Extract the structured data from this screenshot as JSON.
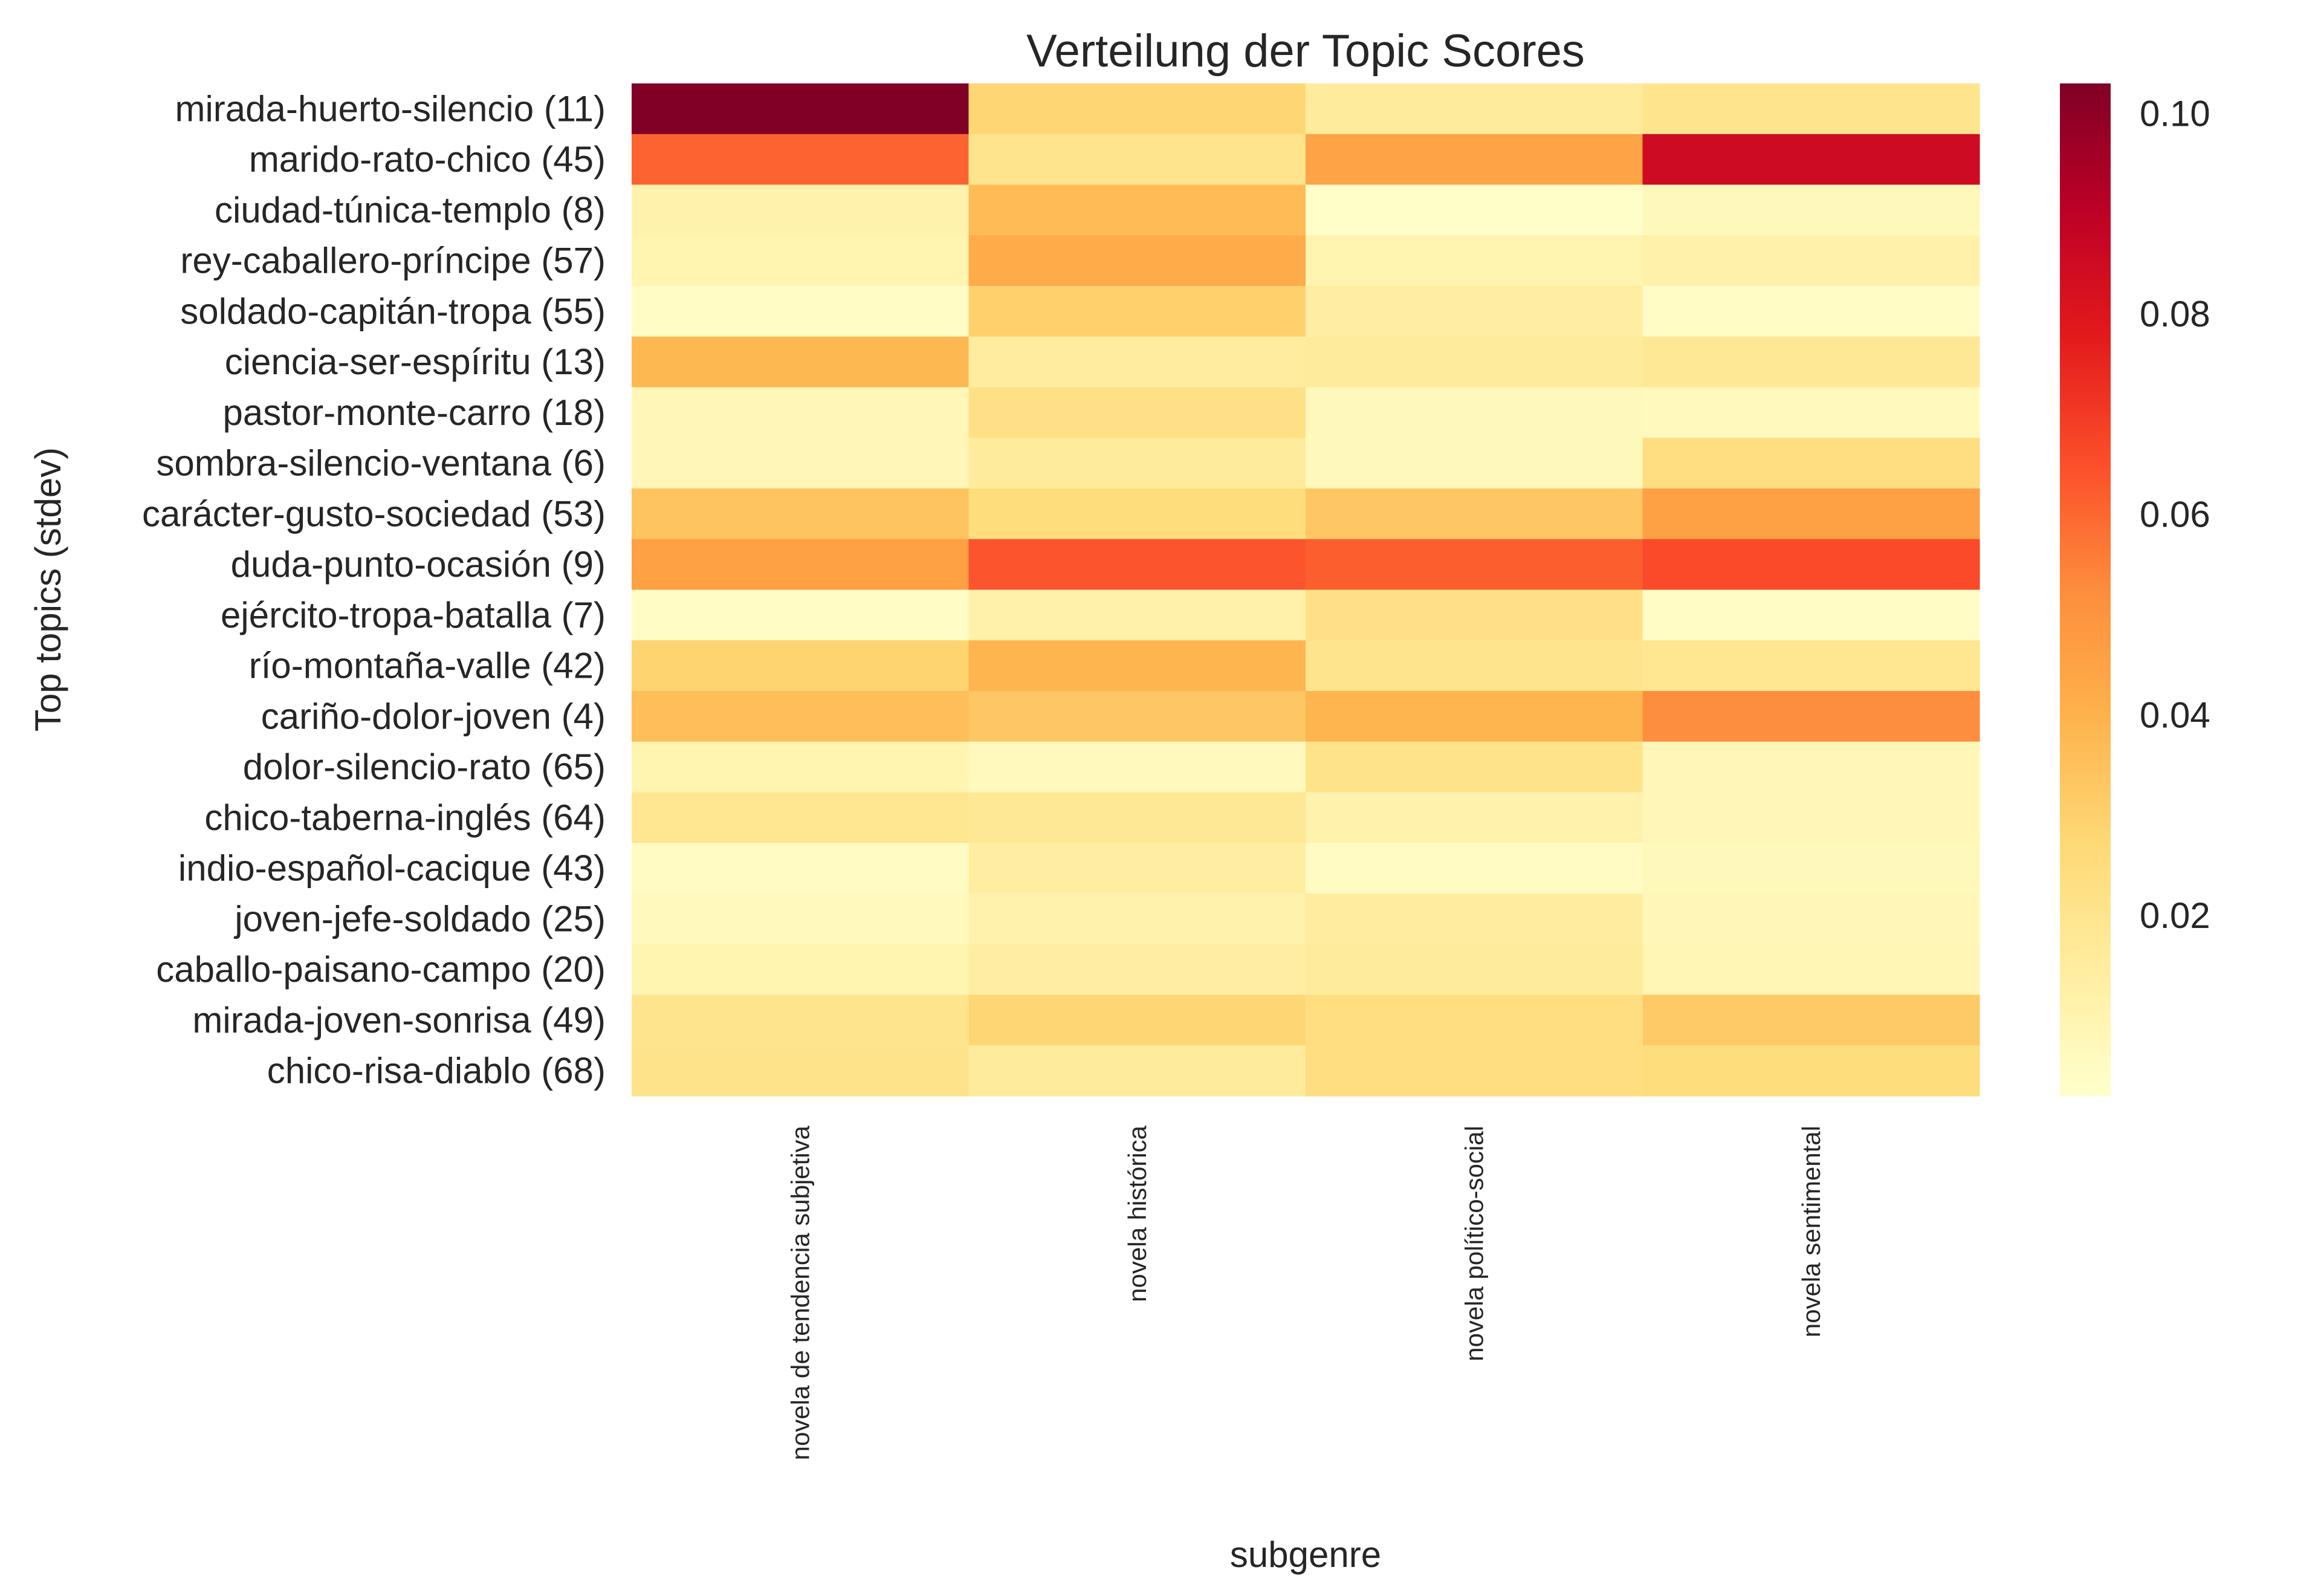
{
  "chart_data": {
    "type": "heatmap",
    "title": "Verteilung der Topic Scores",
    "xlabel": "subgenre",
    "ylabel": "Top topics (stdev)",
    "columns": [
      "novela de tendencia subjetiva",
      "novela histórica",
      "novela político-social",
      "novela sentimental"
    ],
    "rows": [
      "mirada-huerto-silencio (11)",
      "marido-rato-chico (45)",
      "ciudad-túnica-templo (8)",
      "rey-caballero-príncipe (57)",
      "soldado-capitán-tropa (55)",
      "ciencia-ser-espíritu (13)",
      "pastor-monte-carro (18)",
      "sombra-silencio-ventana (6)",
      "carácter-gusto-sociedad (53)",
      "duda-punto-ocasión (9)",
      "ejército-tropa-batalla (7)",
      "río-montaña-valle (42)",
      "cariño-dolor-joven (4)",
      "dolor-silencio-rato (65)",
      "chico-taberna-inglés (64)",
      "indio-español-cacique (43)",
      "joven-jefe-soldado (25)",
      "caballo-paisano-campo (20)",
      "mirada-joven-sonrisa (49)",
      "chico-risa-diablo (68)"
    ],
    "values": [
      [
        0.103,
        0.028,
        0.016,
        0.02
      ],
      [
        0.061,
        0.02,
        0.045,
        0.085
      ],
      [
        0.011,
        0.037,
        0.003,
        0.007
      ],
      [
        0.01,
        0.042,
        0.01,
        0.012
      ],
      [
        0.004,
        0.03,
        0.014,
        0.004
      ],
      [
        0.038,
        0.015,
        0.016,
        0.018
      ],
      [
        0.008,
        0.022,
        0.007,
        0.006
      ],
      [
        0.008,
        0.016,
        0.007,
        0.024
      ],
      [
        0.034,
        0.025,
        0.033,
        0.046
      ],
      [
        0.046,
        0.064,
        0.062,
        0.066
      ],
      [
        0.004,
        0.012,
        0.022,
        0.004
      ],
      [
        0.029,
        0.039,
        0.02,
        0.019
      ],
      [
        0.036,
        0.033,
        0.039,
        0.052
      ],
      [
        0.01,
        0.006,
        0.021,
        0.008
      ],
      [
        0.019,
        0.018,
        0.011,
        0.008
      ],
      [
        0.005,
        0.014,
        0.005,
        0.007
      ],
      [
        0.006,
        0.011,
        0.015,
        0.008
      ],
      [
        0.01,
        0.014,
        0.016,
        0.009
      ],
      [
        0.02,
        0.028,
        0.024,
        0.032
      ],
      [
        0.021,
        0.016,
        0.024,
        0.025
      ]
    ],
    "colorbar": {
      "cmap": "YlOrRd",
      "range": [
        0.002,
        0.103
      ],
      "ticks": [
        "0.02",
        "0.04",
        "0.06",
        "0.08",
        "0.10"
      ]
    }
  }
}
